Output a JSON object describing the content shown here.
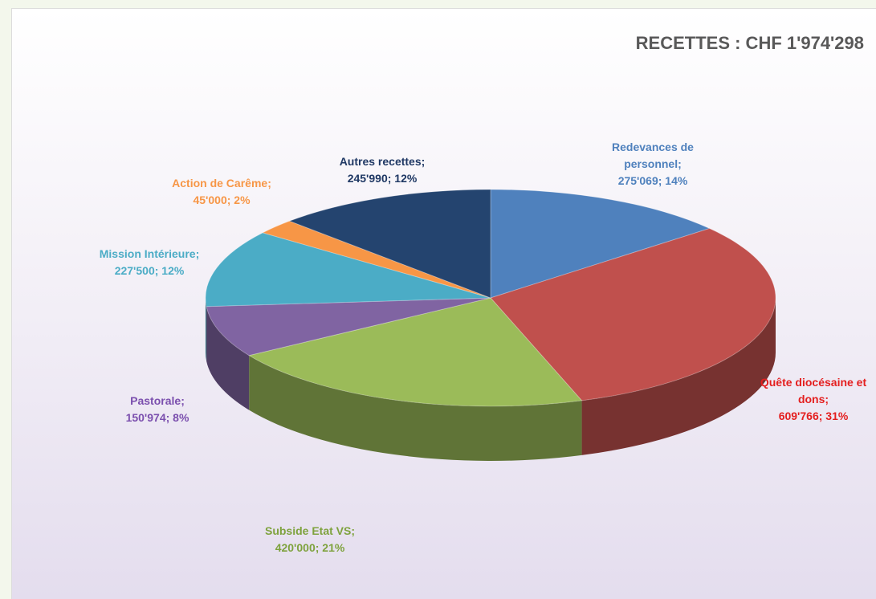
{
  "chart_data": {
    "type": "pie",
    "title": "RECETTES : CHF 1'974'298",
    "categories": [
      "Redevances de personnel",
      "Quête diocésaine et dons",
      "Subside Etat VS",
      "Pastorale",
      "Mission Intérieure",
      "Action de Carême",
      "Autres recettes"
    ],
    "values": [
      275069,
      609766,
      420000,
      150974,
      227500,
      45000,
      245990
    ],
    "value_labels": [
      "275'069; 14%",
      "609'766; 31%",
      "420'000; 21%",
      "150'974; 8%",
      "227'500; 12%",
      "45'000; 2%",
      "245'990; 12%"
    ],
    "colors": [
      "#4f81bd",
      "#c0504d",
      "#9bbb59",
      "#8064a2",
      "#4bacc6",
      "#f79646",
      "#24446f"
    ],
    "label_colors": [
      "#4f81bd",
      "#e41f1f",
      "#7ea23d",
      "#7b4fae",
      "#4bacc6",
      "#f79646",
      "#1f3864"
    ]
  }
}
